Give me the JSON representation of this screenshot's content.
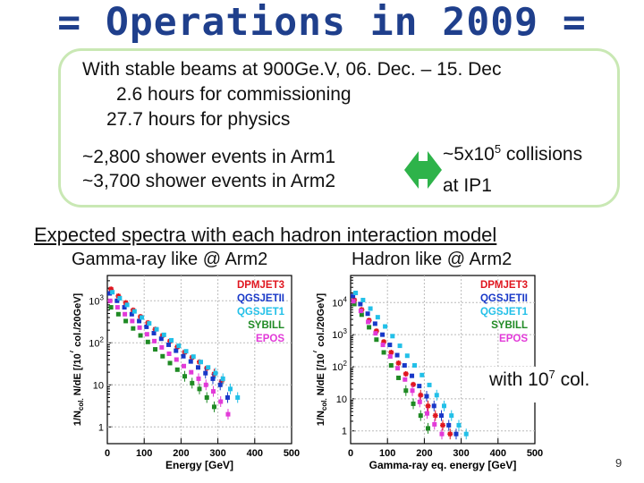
{
  "title": "= Operations in 2009 =",
  "box": {
    "line1": "With stable beams at 900Ge.V, 06. Dec. – 15. Dec",
    "line2": "2.6 hours for commissioning",
    "line3": "27.7 hours for physics",
    "line4": "~2,800 shower events in Arm1",
    "line5": "~3,700 shower events in Arm2",
    "collisions_pre": "~5x10",
    "collisions_exp": "5",
    "collisions_post": " collisions",
    "ip": "at IP1"
  },
  "heading": "Expected spectra with each hadron interaction model",
  "left_subtitle": "Gamma-ray like @ Arm2",
  "right_subtitle": "Hadron like @ Arm2",
  "note_pre": "with 10",
  "note_exp": "7",
  "note_post": " col.",
  "page_number": "9",
  "colors": {
    "title": "#1f3f8c",
    "box_border": "#c9e8b4",
    "arrow": "#2eb34a",
    "DPMJET3": "#e0161f",
    "QGSJETII": "#1838c8",
    "QGSJET1": "#22c0e8",
    "SYBILL": "#1f8a24",
    "EPOS": "#e23ad8"
  },
  "chart_data": [
    {
      "type": "scatter",
      "title": "Gamma-ray like @ Arm2",
      "xlabel": "Energy [GeV]",
      "ylabel_parts": [
        "1/N",
        "col.",
        " N/dE [/10",
        "7",
        " col./20GeV]"
      ],
      "xlim": [
        0,
        500
      ],
      "ylim": [
        0.4,
        4000
      ],
      "log_y": true,
      "x_ticks": [
        "0",
        "100",
        "200",
        "300",
        "400",
        "500"
      ],
      "x_tick_values": [
        0,
        100,
        200,
        300,
        400,
        500
      ],
      "y_ticks": [
        {
          "v": 1,
          "base": "1",
          "exp": ""
        },
        {
          "v": 10,
          "base": "10",
          "exp": ""
        },
        {
          "v": 100,
          "base": "10",
          "exp": "2"
        },
        {
          "v": 1000,
          "base": "10",
          "exp": "3"
        }
      ],
      "series": [
        {
          "name": "DPMJET3",
          "x": [
            10,
            30,
            50,
            70,
            90,
            110,
            130,
            150,
            170,
            190,
            210,
            230,
            250,
            270,
            290,
            310
          ],
          "y": [
            1900,
            1300,
            900,
            600,
            420,
            300,
            210,
            150,
            110,
            80,
            60,
            45,
            35,
            25,
            18,
            12
          ]
        },
        {
          "name": "QGSJETII",
          "x": [
            10,
            30,
            50,
            70,
            90,
            110,
            130,
            150,
            170,
            190,
            210,
            230,
            250,
            270,
            290,
            310,
            330
          ],
          "y": [
            1500,
            1000,
            700,
            480,
            330,
            240,
            170,
            125,
            90,
            65,
            48,
            36,
            26,
            19,
            14,
            10,
            5
          ]
        },
        {
          "name": "QGSJET1",
          "x": [
            10,
            30,
            50,
            70,
            90,
            110,
            130,
            150,
            170,
            190,
            210,
            230,
            250,
            270,
            290,
            310,
            330,
            350
          ],
          "y": [
            1600,
            1150,
            800,
            560,
            400,
            290,
            210,
            155,
            115,
            85,
            63,
            47,
            35,
            26,
            19,
            14,
            8,
            5
          ]
        },
        {
          "name": "SYBILL",
          "x": [
            10,
            30,
            50,
            70,
            90,
            110,
            130,
            150,
            170,
            190,
            210,
            230,
            250,
            270,
            290
          ],
          "y": [
            700,
            480,
            330,
            220,
            150,
            105,
            70,
            48,
            33,
            23,
            16,
            11,
            8,
            5,
            3
          ]
        },
        {
          "name": "EPOS",
          "x": [
            10,
            30,
            50,
            70,
            90,
            110,
            130,
            150,
            170,
            190,
            210,
            230,
            250,
            270,
            290,
            310,
            330
          ],
          "y": [
            1000,
            700,
            480,
            330,
            230,
            160,
            110,
            78,
            55,
            40,
            28,
            20,
            14,
            10,
            7,
            4,
            2
          ]
        }
      ]
    },
    {
      "type": "scatter",
      "title": "Hadron like @ Arm2",
      "xlabel": "Gamma-ray eq. energy [GeV]",
      "ylabel_parts": [
        "1/N",
        "col.",
        " N/dE [/10",
        "7",
        " col./20GeV]"
      ],
      "xlim": [
        0,
        500
      ],
      "ylim": [
        0.4,
        70000
      ],
      "log_y": true,
      "x_ticks": [
        "0",
        "100",
        "200",
        "300",
        "400",
        "500"
      ],
      "x_tick_values": [
        0,
        100,
        200,
        300,
        400,
        500
      ],
      "y_ticks": [
        {
          "v": 1,
          "base": "1",
          "exp": ""
        },
        {
          "v": 10,
          "base": "10",
          "exp": ""
        },
        {
          "v": 100,
          "base": "10",
          "exp": "2"
        },
        {
          "v": 1000,
          "base": "10",
          "exp": "3"
        },
        {
          "v": 10000,
          "base": "10",
          "exp": "4"
        }
      ],
      "series": [
        {
          "name": "DPMJET3",
          "x": [
            10,
            30,
            50,
            70,
            90,
            110,
            130,
            150,
            170,
            190,
            210,
            230,
            250,
            270
          ],
          "y": [
            12000,
            6000,
            2800,
            1300,
            600,
            280,
            130,
            60,
            28,
            13,
            6,
            3,
            1.5,
            0.8
          ]
        },
        {
          "name": "QGSJETII",
          "x": [
            10,
            30,
            50,
            70,
            90,
            110,
            130,
            150,
            170,
            190,
            210,
            230,
            250,
            270,
            290
          ],
          "y": [
            16000,
            9000,
            4500,
            2200,
            1000,
            480,
            230,
            110,
            52,
            25,
            12,
            6,
            3,
            1.5,
            0.8
          ]
        },
        {
          "name": "QGSJET1",
          "x": [
            10,
            30,
            50,
            70,
            90,
            110,
            130,
            150,
            170,
            190,
            210,
            230,
            250,
            270,
            290,
            310
          ],
          "y": [
            20000,
            12000,
            6500,
            3500,
            1800,
            900,
            450,
            220,
            110,
            55,
            27,
            13,
            6,
            3,
            1.5,
            0.8
          ]
        },
        {
          "name": "SYBILL",
          "x": [
            10,
            30,
            50,
            70,
            90,
            110,
            130,
            150,
            170,
            190,
            210
          ],
          "y": [
            9000,
            4200,
            1700,
            700,
            280,
            110,
            45,
            18,
            7,
            3,
            1.2
          ]
        },
        {
          "name": "EPOS",
          "x": [
            10,
            30,
            50,
            70,
            90,
            110,
            130,
            150,
            170,
            190,
            210,
            230,
            250
          ],
          "y": [
            11000,
            5500,
            2500,
            1100,
            480,
            210,
            90,
            40,
            18,
            8,
            3.5,
            1.6,
            0.8
          ]
        }
      ]
    }
  ]
}
